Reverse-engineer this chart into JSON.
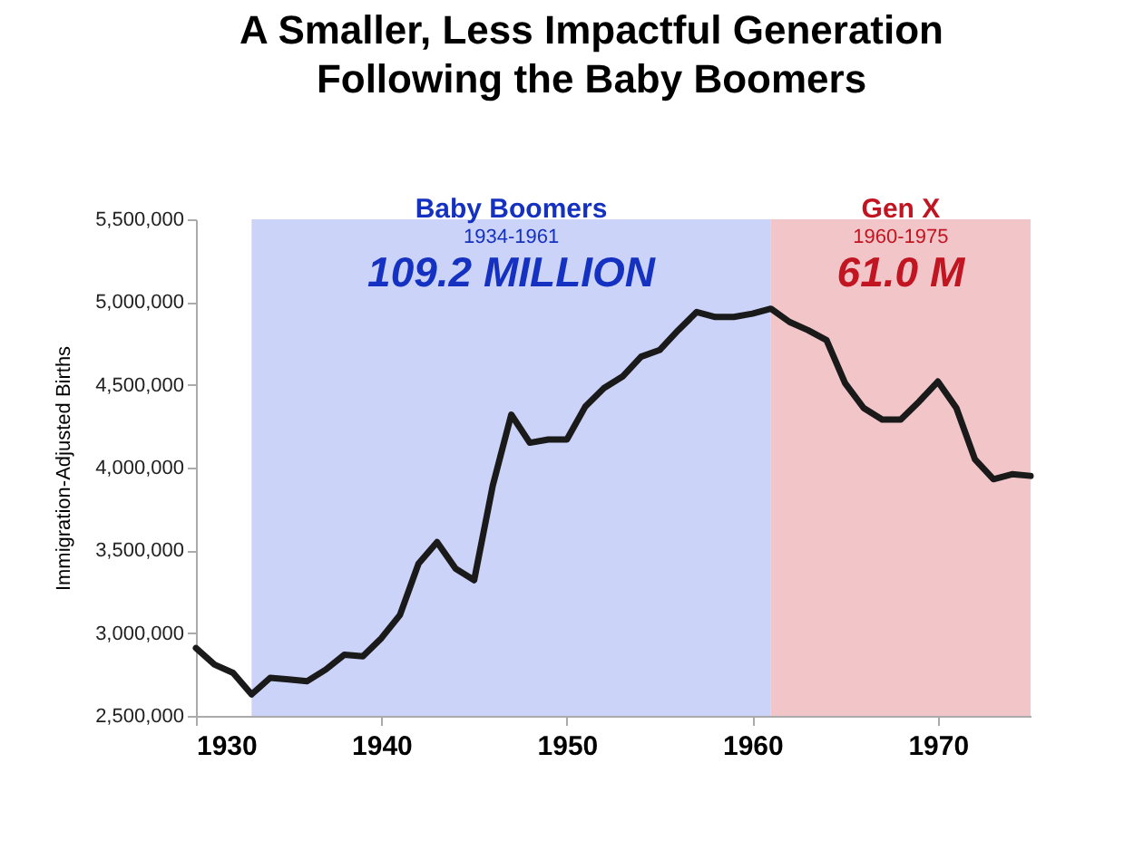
{
  "chart_data": {
    "type": "line",
    "title": "A Smaller, Less Impactful Generation\nFollowing the Baby Boomers",
    "ylabel": "Immigration-Adjusted Births",
    "x": [
      1930,
      1931,
      1932,
      1933,
      1934,
      1935,
      1936,
      1937,
      1938,
      1939,
      1940,
      1941,
      1942,
      1943,
      1944,
      1945,
      1946,
      1947,
      1948,
      1949,
      1950,
      1951,
      1952,
      1953,
      1954,
      1955,
      1956,
      1957,
      1958,
      1959,
      1960,
      1961,
      1962,
      1963,
      1964,
      1965,
      1966,
      1967,
      1968,
      1969,
      1970,
      1971,
      1972,
      1973,
      1974,
      1975
    ],
    "series": [
      {
        "color": "#1a1a1a",
        "values": [
          2910000,
          2810000,
          2760000,
          2630000,
          2730000,
          2720000,
          2710000,
          2780000,
          2870000,
          2860000,
          2970000,
          3110000,
          3420000,
          3550000,
          3390000,
          3320000,
          3890000,
          4320000,
          4150000,
          4170000,
          4170000,
          4370000,
          4480000,
          4550000,
          4670000,
          4710000,
          4830000,
          4940000,
          4910000,
          4910000,
          4930000,
          4960000,
          4880000,
          4830000,
          4770000,
          4510000,
          4360000,
          4290000,
          4290000,
          4400000,
          4520000,
          4360000,
          4050000,
          3930000,
          3960000,
          3950000
        ]
      }
    ],
    "xlim": [
      1930,
      1975
    ],
    "xticks": [
      1930,
      1940,
      1950,
      1960,
      1970
    ],
    "ylim": [
      2500000,
      5500000
    ],
    "yticks": [
      {
        "value": 2500000,
        "label": "2,500,000"
      },
      {
        "value": 3000000,
        "label": "3,000,000"
      },
      {
        "value": 3500000,
        "label": "3,500,000"
      },
      {
        "value": 4000000,
        "label": "4,000,000"
      },
      {
        "value": 4500000,
        "label": "4,500,000"
      },
      {
        "value": 5000000,
        "label": "5,000,000"
      },
      {
        "value": 5500000,
        "label": "5,500,000"
      }
    ],
    "bands": [
      {
        "axis": "x",
        "from": 1933,
        "to": 1961,
        "label": "Baby Boomers",
        "color": "#ccd3f8"
      },
      {
        "axis": "x",
        "from": 1961,
        "to": 1975,
        "label": "Gen X",
        "color": "#f2c6c9"
      }
    ],
    "annotations": [
      "1934-1961",
      "109.2 MILLION",
      "1960-1975",
      "61.0 M"
    ],
    "grid": false,
    "marker": "none",
    "line_style": "solid"
  }
}
